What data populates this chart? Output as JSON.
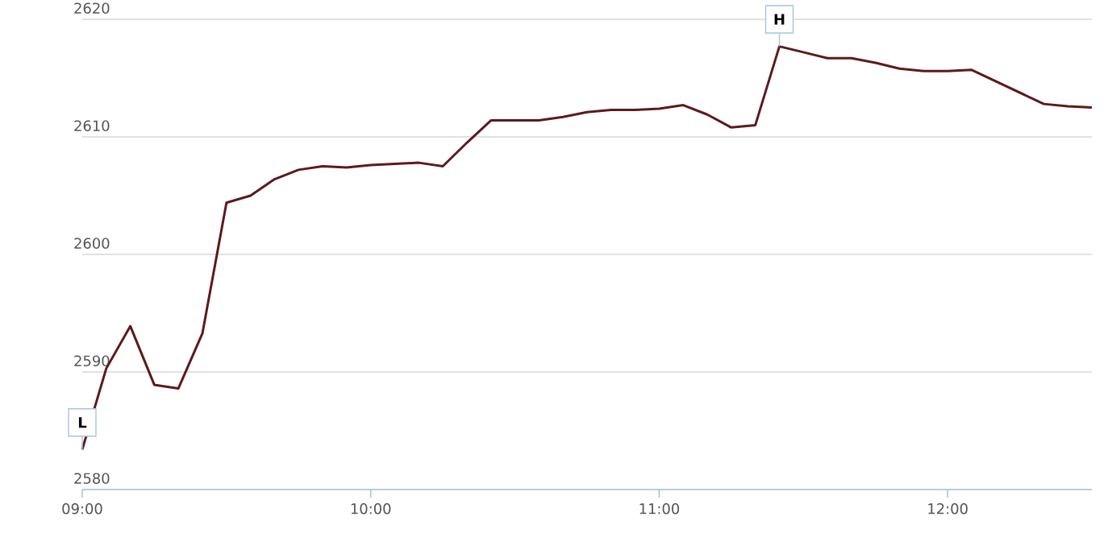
{
  "chart_data": {
    "type": "line",
    "x": [
      9.0,
      9.0833,
      9.1667,
      9.25,
      9.3333,
      9.4167,
      9.5,
      9.5833,
      9.6667,
      9.75,
      9.8333,
      9.9167,
      10.0,
      10.0833,
      10.1667,
      10.25,
      10.3333,
      10.4167,
      10.5,
      10.5833,
      10.6667,
      10.75,
      10.8333,
      10.9167,
      11.0,
      11.0833,
      11.1667,
      11.25,
      11.3333,
      11.4167,
      11.5,
      11.5833,
      11.6667,
      11.75,
      11.8333,
      11.9167,
      12.0,
      12.0833,
      12.3333,
      12.4167,
      12.5
    ],
    "series": [
      {
        "color": "#5c1a1e",
        "values": [
          2583.4,
          2590.3,
          2593.9,
          2588.9,
          2588.6,
          2593.3,
          2604.4,
          2605.0,
          2606.4,
          2607.2,
          2607.5,
          2607.4,
          2607.6,
          2607.7,
          2607.8,
          2607.5,
          2609.5,
          2611.4,
          2611.4,
          2611.4,
          2611.7,
          2612.1,
          2612.3,
          2612.3,
          2612.4,
          2612.7,
          2611.9,
          2610.8,
          2611.0,
          2617.7,
          2617.2,
          2616.7,
          2616.7,
          2616.3,
          2615.8,
          2615.6,
          2615.6,
          2615.7,
          2612.8,
          2612.6,
          2612.5
        ]
      }
    ],
    "xlim": [
      9,
      12.5
    ],
    "xticks": [
      {
        "value": 9,
        "label": "09:00"
      },
      {
        "value": 10,
        "label": "10:00"
      },
      {
        "value": 11,
        "label": "11:00"
      },
      {
        "value": 12,
        "label": "12:00"
      }
    ],
    "ylim": [
      2580,
      2620
    ],
    "yticks": [
      2580,
      2590,
      2600,
      2610,
      2620
    ],
    "grid": "y",
    "marker": "none",
    "line_style": "solid",
    "annotations": [
      {
        "text": "H",
        "x": 11.4167,
        "y": 2617.7
      },
      {
        "text": "L",
        "x": 9.0,
        "y": 2583.4
      }
    ]
  }
}
